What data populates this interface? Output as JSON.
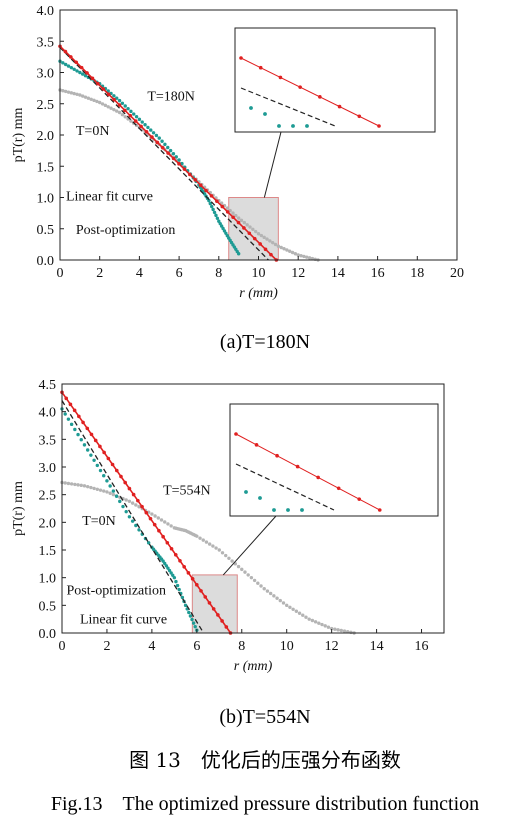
{
  "figure": {
    "caption_cn": "图 13　优化后的压强分布函数",
    "caption_en": "Fig.13　The optimized pressure distribution function"
  },
  "chart_data": [
    {
      "id": "a",
      "type": "scatter",
      "caption": "(a)T=180N",
      "xlabel": "r (mm)",
      "ylabel": "pT(r) mm",
      "xlim": [
        0,
        20
      ],
      "ylim": [
        0,
        4.0
      ],
      "xticks": [
        0,
        2,
        4,
        6,
        8,
        10,
        12,
        14,
        16,
        18,
        20
      ],
      "yticks": [
        0.0,
        0.5,
        1.0,
        1.5,
        2.0,
        2.5,
        3.0,
        3.5,
        4.0
      ],
      "series": [
        {
          "key": "t0",
          "color": "#b4b4b4",
          "style": "dots",
          "x": [
            0,
            1,
            2,
            3,
            4,
            5,
            6,
            7,
            8,
            9,
            10,
            11,
            12,
            13
          ],
          "y": [
            2.72,
            2.64,
            2.52,
            2.36,
            2.12,
            1.85,
            1.55,
            1.25,
            0.95,
            0.67,
            0.42,
            0.22,
            0.08,
            0.0
          ]
        },
        {
          "key": "t180",
          "color": "#1e9b94",
          "style": "dots",
          "x": [
            0,
            1,
            2,
            3,
            4,
            5,
            6,
            7,
            7.5,
            8,
            8.5,
            9
          ],
          "y": [
            3.18,
            3.0,
            2.82,
            2.55,
            2.25,
            1.95,
            1.6,
            1.2,
            0.95,
            0.62,
            0.35,
            0.1
          ]
        },
        {
          "key": "linear",
          "color": "#222222",
          "style": "dash",
          "x": [
            0,
            10.5
          ],
          "y": [
            3.4,
            0.0
          ]
        },
        {
          "key": "post",
          "color": "#e02020",
          "style": "line-dots",
          "x": [
            0,
            10.9
          ],
          "y": [
            3.42,
            0.0
          ]
        }
      ],
      "annotations": [
        {
          "text": "T=180N",
          "x": 4.4,
          "y": 2.55
        },
        {
          "text": "T=0N",
          "x": 0.8,
          "y": 2.0
        },
        {
          "text": "Linear fit curve",
          "x": 0.3,
          "y": 0.95
        },
        {
          "text": "Post-optimization",
          "x": 0.8,
          "y": 0.42
        }
      ],
      "zoom_region": {
        "x": [
          8.5,
          11.0
        ],
        "y": [
          0.0,
          1.0
        ]
      }
    },
    {
      "id": "b",
      "type": "scatter",
      "caption": "(b)T=554N",
      "xlabel": "r (mm)",
      "ylabel": "pT(r) mm",
      "xlim": [
        0,
        17
      ],
      "ylim": [
        0,
        4.5
      ],
      "xticks": [
        0,
        2,
        4,
        6,
        8,
        10,
        12,
        14,
        16
      ],
      "yticks": [
        0.0,
        0.5,
        1.0,
        1.5,
        2.0,
        2.5,
        3.0,
        3.5,
        4.0,
        4.5
      ],
      "series": [
        {
          "key": "t0",
          "color": "#b4b4b4",
          "style": "dots",
          "x": [
            0,
            1,
            2,
            3,
            4,
            5,
            5.5,
            6,
            7,
            8,
            9,
            10,
            11,
            12,
            13
          ],
          "y": [
            2.72,
            2.66,
            2.55,
            2.38,
            2.15,
            1.9,
            1.85,
            1.75,
            1.5,
            1.15,
            0.8,
            0.5,
            0.25,
            0.08,
            0.0
          ]
        },
        {
          "key": "t554",
          "color": "#1e9b94",
          "style": "dots",
          "x": [
            0,
            1,
            2,
            3,
            4,
            4.5,
            5,
            5.5,
            6
          ],
          "y": [
            4.05,
            3.4,
            2.75,
            2.1,
            1.55,
            1.3,
            1.0,
            0.5,
            0.05
          ]
        },
        {
          "key": "linear",
          "color": "#222222",
          "style": "dash",
          "x": [
            0,
            6.3
          ],
          "y": [
            4.2,
            0.0
          ]
        },
        {
          "key": "post",
          "color": "#e02020",
          "style": "line-dots",
          "x": [
            0,
            7.5
          ],
          "y": [
            4.35,
            0.0
          ]
        }
      ],
      "annotations": [
        {
          "text": "T=554N",
          "x": 4.5,
          "y": 2.5
        },
        {
          "text": "T=0N",
          "x": 0.9,
          "y": 1.95
        },
        {
          "text": "Post-optimization",
          "x": 0.2,
          "y": 0.7
        },
        {
          "text": "Linear fit curve",
          "x": 0.8,
          "y": 0.17
        }
      ],
      "zoom_region": {
        "x": [
          5.8,
          7.8
        ],
        "y": [
          0.0,
          1.05
        ]
      }
    }
  ]
}
